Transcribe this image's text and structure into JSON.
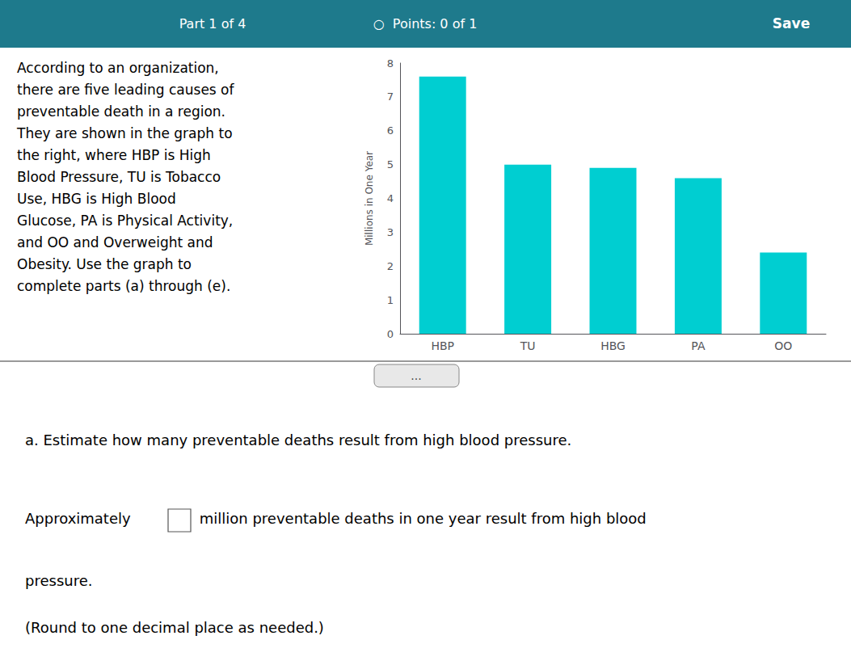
{
  "chart_data": {
    "type": "bar",
    "categories": [
      "HBP",
      "TU",
      "HBG",
      "PA",
      "OO"
    ],
    "values": [
      7.6,
      5.0,
      4.9,
      4.6,
      2.4
    ],
    "color": "#00CED1",
    "ylabel": "Millions in One Year",
    "ylim": [
      0,
      8
    ],
    "yticks": [
      0,
      1,
      2,
      3,
      4,
      5,
      6,
      7,
      8
    ],
    "grid": false,
    "annotations": [
      "Part 1 of 4",
      "○  Points: 0 of 1",
      "Save",
      "According to an organization,\nthere are five leading causes of\npreventable death in a region.\nThey are shown in the graph to\nthe right, where HBP is High\nBlood Pressure, TU is Tobacco\nUse, HBG is High Blood\nGlucose, PA is Physical Activity,\nand OO and Overweight and\nObesity. Use the graph to\ncomplete parts (a) through (e).",
      "...",
      "a. Estimate how many preventable deaths result from high blood pressure.",
      "Approximately ",
      " million preventable deaths in one year result from high blood",
      "pressure.",
      "(Round to one decimal place as needed.)"
    ]
  }
}
